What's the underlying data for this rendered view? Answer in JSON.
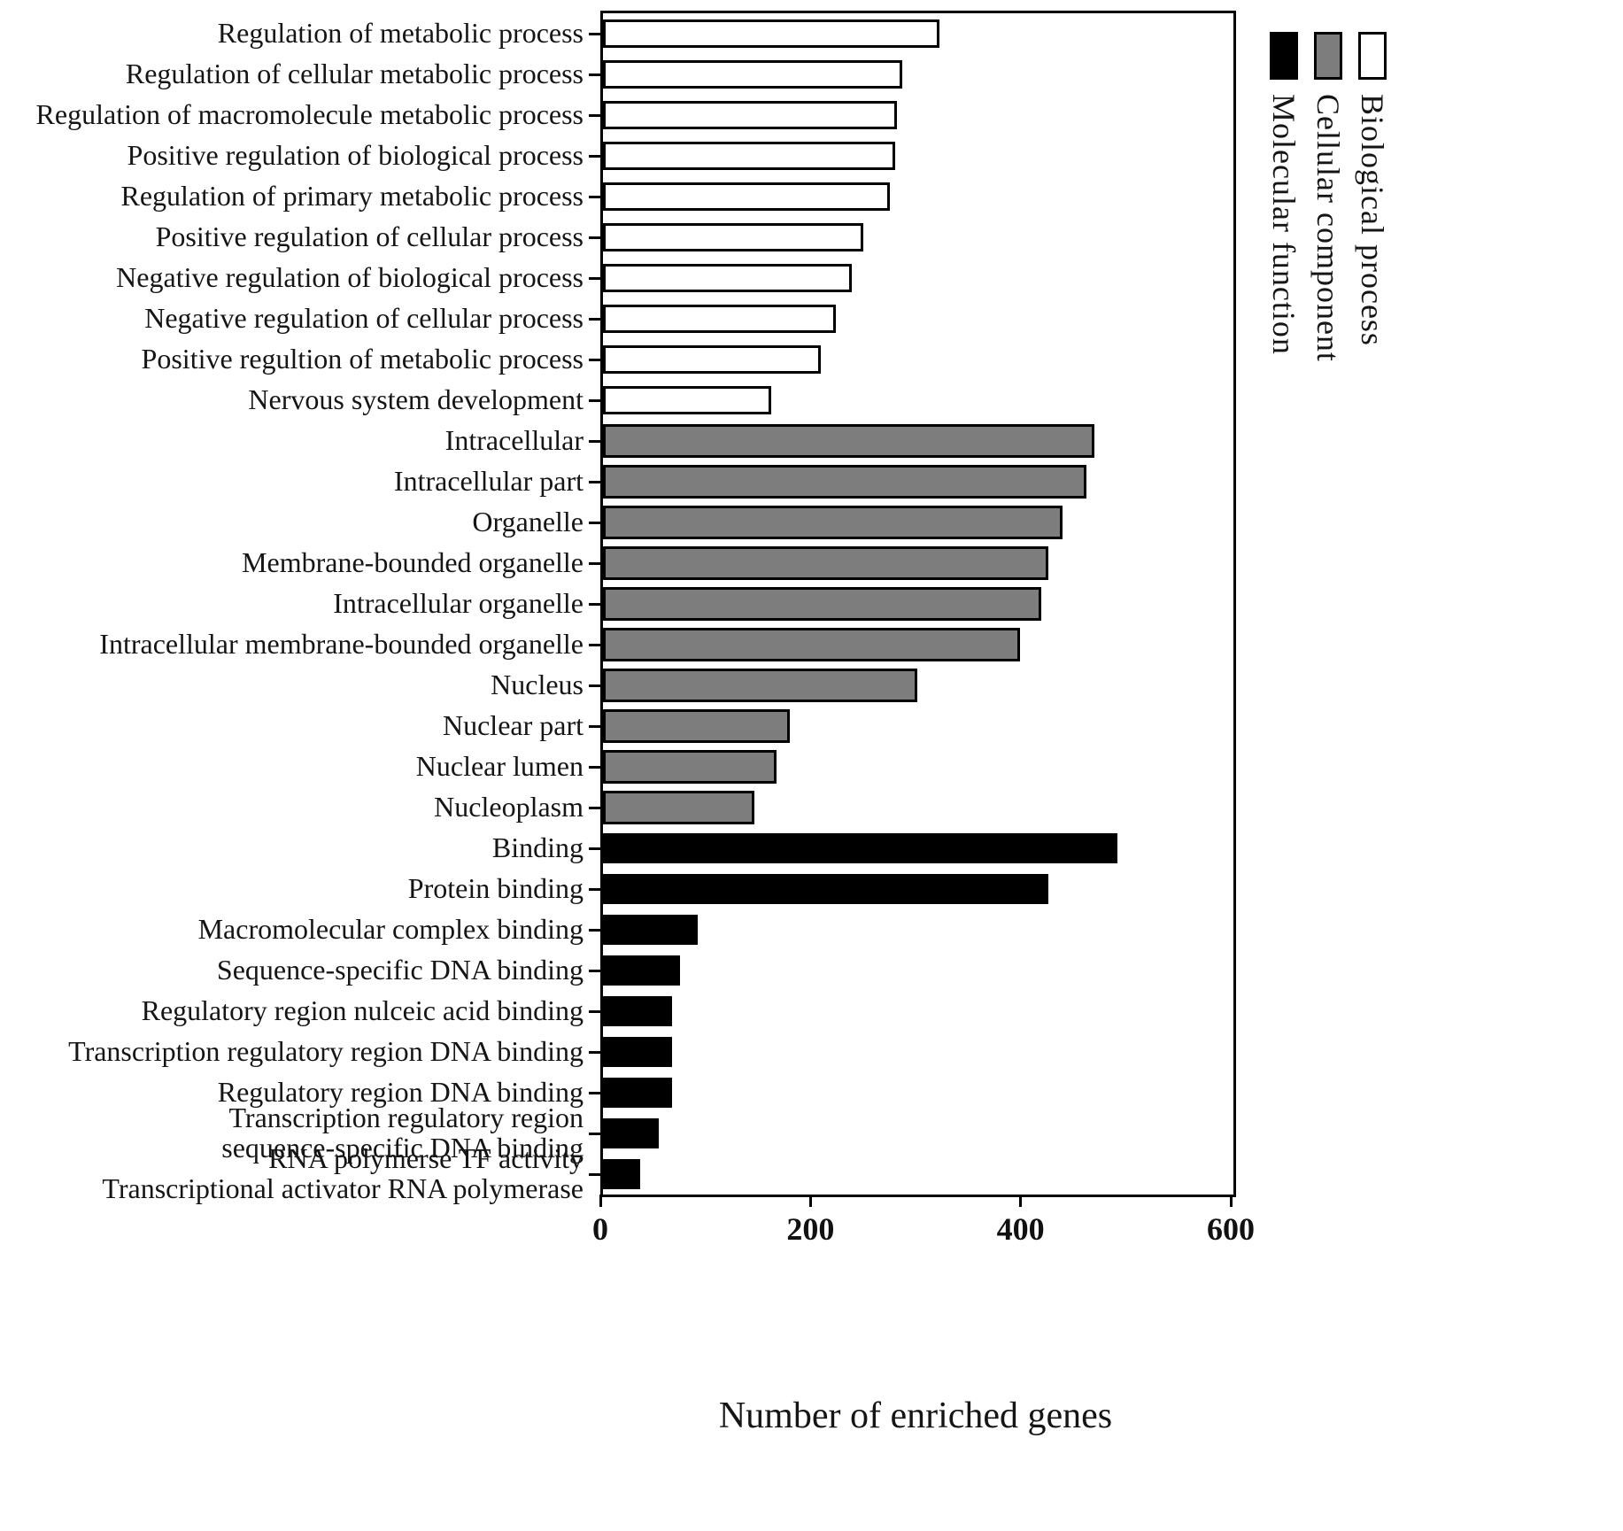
{
  "figure": {
    "xlabel": "Number of enriched genes"
  },
  "legend": {
    "items": [
      {
        "label": "Molecular function",
        "color": "#000000"
      },
      {
        "label": "Cellular component",
        "color": "#7d7d7d"
      },
      {
        "label": "Biological process",
        "color": "#ffffff"
      }
    ]
  },
  "chart_data": {
    "type": "bar",
    "orientation": "horizontal",
    "title": "",
    "xlabel": "Number of enriched genes",
    "xlim": [
      0,
      600
    ],
    "x_ticks": [
      0,
      200,
      400,
      600
    ],
    "grid": false,
    "legend_position": "top-right",
    "series": [
      {
        "name": "Biological process",
        "key": "bp",
        "color": "#ffffff",
        "items": [
          {
            "label": "Regulation of metabolic process",
            "value": 320
          },
          {
            "label": "Regulation of cellular metabolic process",
            "value": 285
          },
          {
            "label": "Regulation of macromolecule metabolic process",
            "value": 280
          },
          {
            "label": "Positive regulation of biological process",
            "value": 278
          },
          {
            "label": "Regulation of primary metabolic process",
            "value": 273
          },
          {
            "label": "Positive regulation of cellular process",
            "value": 248
          },
          {
            "label": "Negative regulation of biological process",
            "value": 237
          },
          {
            "label": "Negative regulation of cellular process",
            "value": 222
          },
          {
            "label": "Positive regultion of metabolic process",
            "value": 207
          },
          {
            "label": "Nervous system development",
            "value": 160
          }
        ]
      },
      {
        "name": "Cellular component",
        "key": "cc",
        "color": "#7d7d7d",
        "items": [
          {
            "label": "Intracellular",
            "value": 468
          },
          {
            "label": "Intracellular part",
            "value": 460
          },
          {
            "label": "Organelle",
            "value": 437
          },
          {
            "label": "Membrane-bounded organelle",
            "value": 424
          },
          {
            "label": "Intracellular organelle",
            "value": 417
          },
          {
            "label": "Intracellular membrane-bounded organelle",
            "value": 397
          },
          {
            "label": "Nucleus",
            "value": 299
          },
          {
            "label": "Nuclear part",
            "value": 178
          },
          {
            "label": "Nuclear lumen",
            "value": 165
          },
          {
            "label": "Nucleoplasm",
            "value": 144
          }
        ]
      },
      {
        "name": "Molecular function",
        "key": "mf",
        "color": "#000000",
        "items": [
          {
            "label": "Binding",
            "value": 490
          },
          {
            "label": "Protein binding",
            "value": 424
          },
          {
            "label": "Macromolecular complex binding",
            "value": 90
          },
          {
            "label": "Sequence-specific DNA binding",
            "value": 73
          },
          {
            "label": "Regulatory region nulceic acid binding",
            "value": 66
          },
          {
            "label": "Transcription regulatory region DNA binding",
            "value": 66
          },
          {
            "label": "Regulatory region DNA binding",
            "value": 66
          },
          {
            "label": "Transcription regulatory region\nsequence-specific DNA binding",
            "value": 53
          },
          {
            "label": "RNA polymerse TF activity\nTranscriptional activator RNA polymerase",
            "value": 35
          }
        ]
      }
    ]
  }
}
